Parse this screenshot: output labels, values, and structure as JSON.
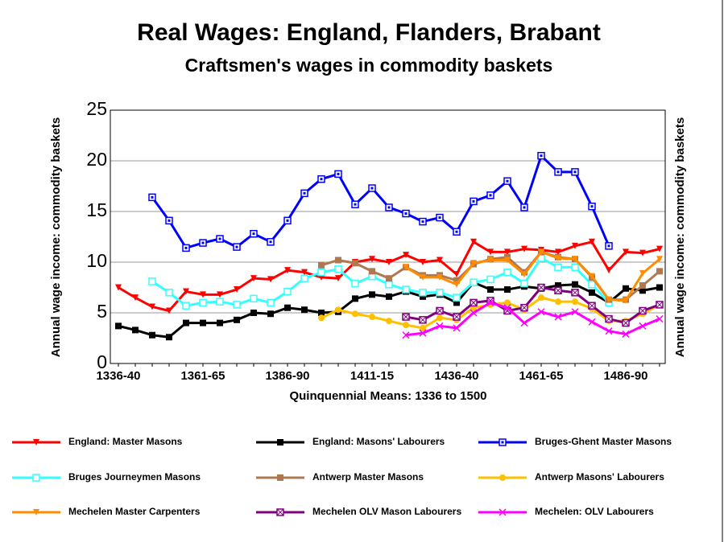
{
  "chart_data": {
    "type": "line",
    "title": "Real Wages: England, Flanders, Brabant",
    "subtitle": "Craftsmen's wages in commodity baskets",
    "y_label": "Annual wage income: commodity baskets",
    "x_label": "Quinquennial Means: 1336 to 1500",
    "categories": [
      "1336-40",
      null,
      null,
      null,
      null,
      "1361-65",
      null,
      null,
      null,
      null,
      "1386-90",
      null,
      null,
      null,
      null,
      "1411-15",
      null,
      null,
      null,
      null,
      "1436-40",
      null,
      null,
      null,
      null,
      "1461-65",
      null,
      null,
      null,
      null,
      "1486-90",
      null,
      null
    ],
    "ylim": [
      0,
      25
    ],
    "yticks": [
      0,
      5,
      10,
      15,
      20,
      25
    ],
    "grid": true,
    "series": [
      {
        "name": "England: Master Masons",
        "color": "#ff0000",
        "marker": "triangle-down",
        "values": [
          7.5,
          6.5,
          5.6,
          5.2,
          7.1,
          6.8,
          6.8,
          7.3,
          8.4,
          8.3,
          9.2,
          9.0,
          8.5,
          8.4,
          10.0,
          10.3,
          10.0,
          10.7,
          10.0,
          10.2,
          8.8,
          12.0,
          11.0,
          11.0,
          11.3,
          11.2,
          11.0,
          11.6,
          12.0,
          9.2,
          11.0,
          10.9,
          11.3
        ]
      },
      {
        "name": "England: Masons' Labourers",
        "color": "#000000",
        "marker": "square",
        "values": [
          3.7,
          3.3,
          2.8,
          2.6,
          4.0,
          4.0,
          4.0,
          4.3,
          5.0,
          4.9,
          5.5,
          5.3,
          5.0,
          5.1,
          6.4,
          6.8,
          6.6,
          7.1,
          6.6,
          6.8,
          6.0,
          8.0,
          7.3,
          7.3,
          7.6,
          7.4,
          7.7,
          7.8,
          7.0,
          6.0,
          7.4,
          7.2,
          7.5
        ]
      },
      {
        "name": "Bruges-Ghent Master Masons",
        "color": "#0000ff",
        "marker": "square-dot",
        "values": [
          null,
          null,
          16.4,
          14.1,
          11.4,
          11.9,
          12.3,
          11.5,
          12.8,
          12.0,
          14.1,
          16.8,
          18.2,
          18.7,
          15.7,
          17.3,
          15.4,
          14.8,
          14.0,
          14.4,
          13.0,
          16.0,
          16.6,
          18.0,
          15.4,
          20.5,
          18.9,
          18.9,
          15.5,
          11.6,
          null,
          null,
          null
        ]
      },
      {
        "name": "Bruges Journeymen Masons",
        "color": "#33ffff",
        "marker": "square-open",
        "values": [
          null,
          null,
          8.1,
          7.0,
          5.7,
          6.0,
          6.1,
          5.8,
          6.4,
          6.0,
          7.1,
          8.4,
          9.0,
          9.3,
          7.9,
          8.6,
          7.8,
          7.3,
          7.0,
          7.0,
          6.5,
          8.0,
          8.3,
          9.0,
          7.9,
          10.4,
          9.5,
          9.5,
          7.8,
          6.0,
          null,
          null,
          null
        ]
      },
      {
        "name": "Antwerp Master Masons",
        "color": "#b07850",
        "marker": "square",
        "values": [
          null,
          null,
          null,
          null,
          null,
          null,
          null,
          null,
          null,
          null,
          null,
          null,
          9.7,
          10.2,
          9.9,
          9.1,
          8.4,
          9.5,
          8.7,
          8.7,
          8.2,
          9.8,
          10.3,
          10.5,
          9.0,
          11.0,
          10.5,
          10.3,
          8.5,
          6.3,
          6.3,
          7.7,
          9.1
        ]
      },
      {
        "name": "Antwerp Masons' Labourers",
        "color": "#ffc000",
        "marker": "circle",
        "values": [
          null,
          null,
          null,
          null,
          null,
          null,
          null,
          null,
          null,
          null,
          null,
          null,
          4.5,
          5.3,
          4.9,
          4.6,
          4.2,
          3.8,
          3.5,
          4.5,
          4.3,
          5.5,
          5.8,
          6.0,
          5.3,
          6.5,
          6.1,
          6.1,
          5.4,
          4.2,
          4.2,
          4.9,
          5.8
        ]
      },
      {
        "name": "Mechelen Master Carpenters",
        "color": "#ff8c00",
        "marker": "triangle-down",
        "values": [
          null,
          null,
          null,
          null,
          null,
          null,
          null,
          null,
          null,
          null,
          null,
          null,
          null,
          null,
          null,
          null,
          null,
          9.5,
          8.5,
          8.5,
          7.8,
          9.9,
          10.2,
          10.2,
          8.8,
          11.0,
          10.4,
          10.3,
          8.6,
          6.3,
          6.2,
          8.9,
          10.3
        ]
      },
      {
        "name": "Mechelen OLV Mason Labourers",
        "color": "#800080",
        "marker": "square-x",
        "values": [
          null,
          null,
          null,
          null,
          null,
          null,
          null,
          null,
          null,
          null,
          null,
          null,
          null,
          null,
          null,
          null,
          null,
          4.6,
          4.3,
          5.2,
          4.6,
          6.0,
          6.2,
          5.2,
          5.5,
          7.5,
          7.2,
          7.0,
          5.7,
          4.4,
          4.0,
          5.2,
          5.8
        ]
      },
      {
        "name": "Mechelen: OLV Labourers",
        "color": "#ff00ff",
        "marker": "x",
        "values": [
          null,
          null,
          null,
          null,
          null,
          null,
          null,
          null,
          null,
          null,
          null,
          null,
          null,
          null,
          null,
          null,
          null,
          2.8,
          3.0,
          3.7,
          3.5,
          5.0,
          6.0,
          5.5,
          4.0,
          5.1,
          4.6,
          5.1,
          4.1,
          3.2,
          2.9,
          3.7,
          4.4
        ]
      }
    ]
  }
}
